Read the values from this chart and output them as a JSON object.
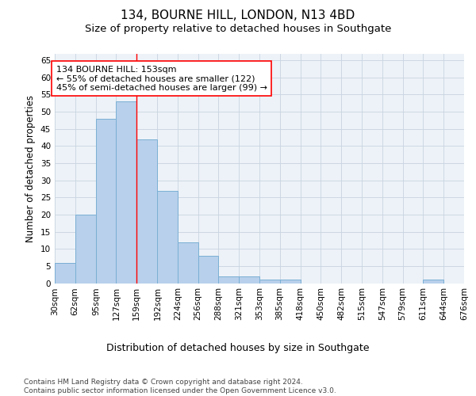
{
  "title": "134, BOURNE HILL, LONDON, N13 4BD",
  "subtitle": "Size of property relative to detached houses in Southgate",
  "xlabel": "Distribution of detached houses by size in Southgate",
  "ylabel": "Number of detached properties",
  "bar_color": "#b8d0eb",
  "bar_edge_color": "#7aafd4",
  "grid_color": "#c8d4e0",
  "background_color": "#edf2f8",
  "bins": [
    30,
    62,
    95,
    127,
    159,
    192,
    224,
    256,
    288,
    321,
    353,
    385,
    418,
    450,
    482,
    515,
    547,
    579,
    611,
    644,
    676
  ],
  "bar_labels": [
    "30sqm",
    "62sqm",
    "95sqm",
    "127sqm",
    "159sqm",
    "192sqm",
    "224sqm",
    "256sqm",
    "288sqm",
    "321sqm",
    "353sqm",
    "385sqm",
    "418sqm",
    "450sqm",
    "482sqm",
    "515sqm",
    "547sqm",
    "579sqm",
    "611sqm",
    "644sqm",
    "676sqm"
  ],
  "values": [
    6,
    20,
    48,
    53,
    42,
    27,
    12,
    8,
    2,
    2,
    1,
    1,
    0,
    0,
    0,
    0,
    0,
    0,
    1,
    0
  ],
  "red_line_x": 159,
  "annotation_line1": "134 BOURNE HILL: 153sqm",
  "annotation_line2": "← 55% of detached houses are smaller (122)",
  "annotation_line3": "45% of semi-detached houses are larger (99) →",
  "ylim": [
    0,
    67
  ],
  "yticks": [
    0,
    5,
    10,
    15,
    20,
    25,
    30,
    35,
    40,
    45,
    50,
    55,
    60,
    65
  ],
  "footnote": "Contains HM Land Registry data © Crown copyright and database right 2024.\nContains public sector information licensed under the Open Government Licence v3.0.",
  "title_fontsize": 11,
  "subtitle_fontsize": 9.5,
  "xlabel_fontsize": 9,
  "ylabel_fontsize": 8.5,
  "tick_fontsize": 7.5,
  "annotation_fontsize": 8,
  "footnote_fontsize": 6.5
}
